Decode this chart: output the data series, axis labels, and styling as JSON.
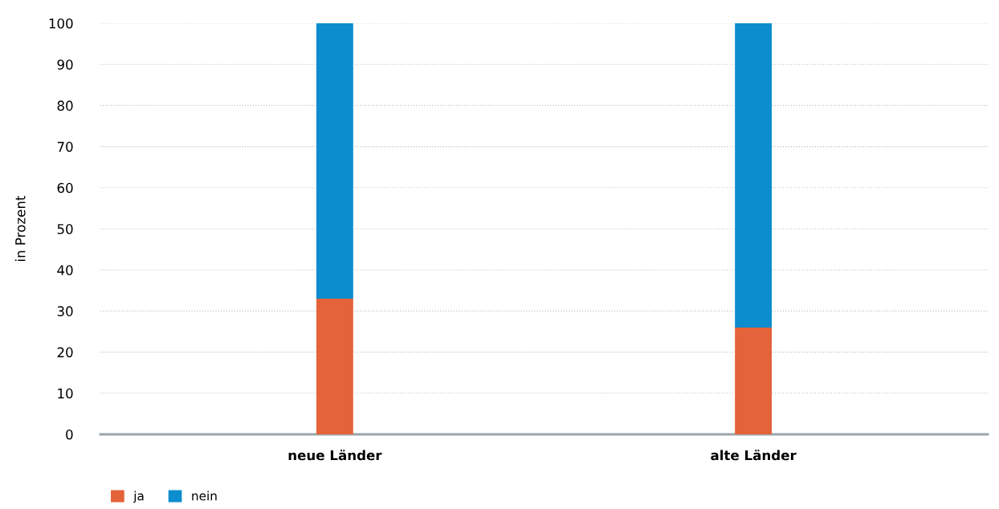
{
  "chart_data": {
    "type": "bar",
    "stacked": true,
    "ylabel": "in Prozent",
    "categories": [
      "neue Länder",
      "alte Länder"
    ],
    "series": [
      {
        "name": "ja",
        "color": "#e4633a",
        "values": [
          33,
          26
        ]
      },
      {
        "name": "nein",
        "color": "#0b8dce",
        "values": [
          67,
          74
        ]
      }
    ],
    "ylim": [
      0,
      100
    ],
    "yticks": [
      0,
      10,
      20,
      30,
      40,
      50,
      60,
      70,
      80,
      90,
      100
    ],
    "grid": "y",
    "legend": "bottom left"
  }
}
